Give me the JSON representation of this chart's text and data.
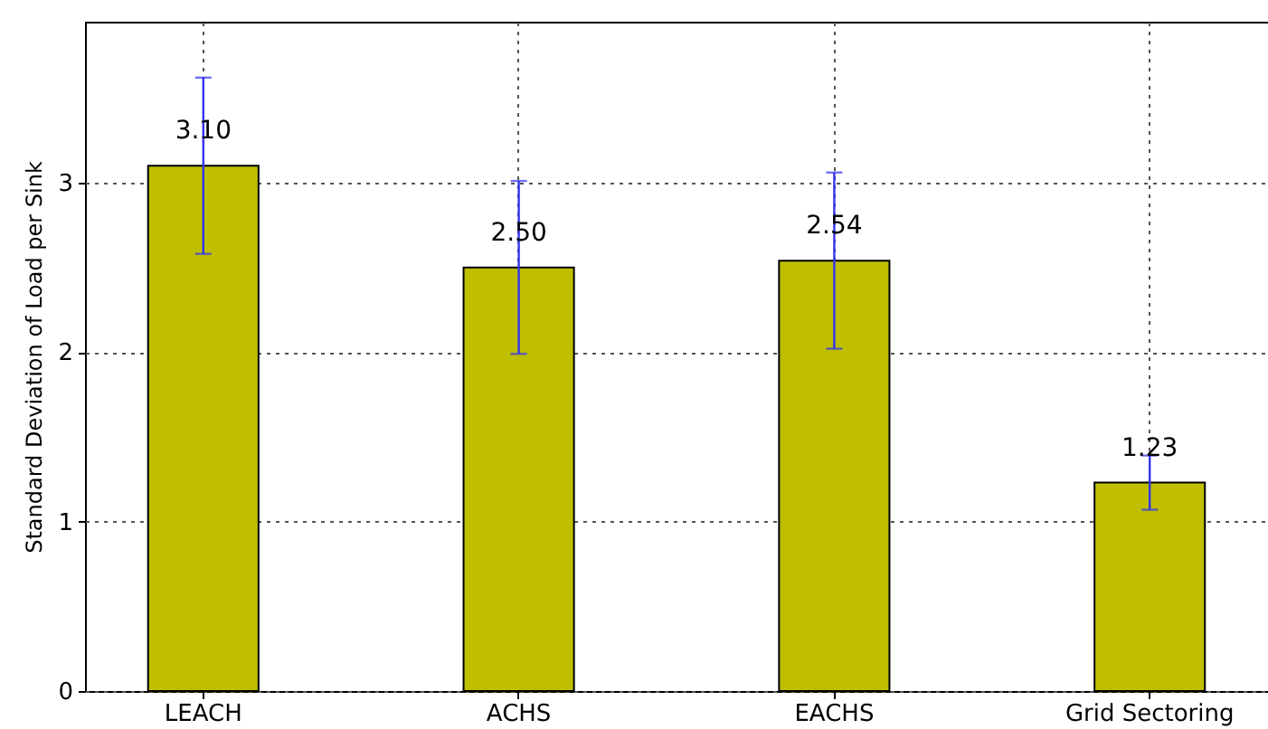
{
  "chart_data": {
    "type": "bar",
    "ylabel": "Standard Deviation of Load per Sink",
    "categories": [
      "LEACH",
      "ACHS",
      "EACHS",
      "Grid Sectoring"
    ],
    "values": [
      3.1,
      2.5,
      2.54,
      1.23
    ],
    "errors": [
      0.52,
      0.51,
      0.52,
      0.16
    ],
    "value_labels": [
      "3.10",
      "2.50",
      "2.54",
      "1.23"
    ],
    "color": "#bfbf00",
    "ylim": [
      0,
      3.95
    ],
    "yticks": [
      0,
      1,
      2,
      3
    ],
    "grid": true
  }
}
